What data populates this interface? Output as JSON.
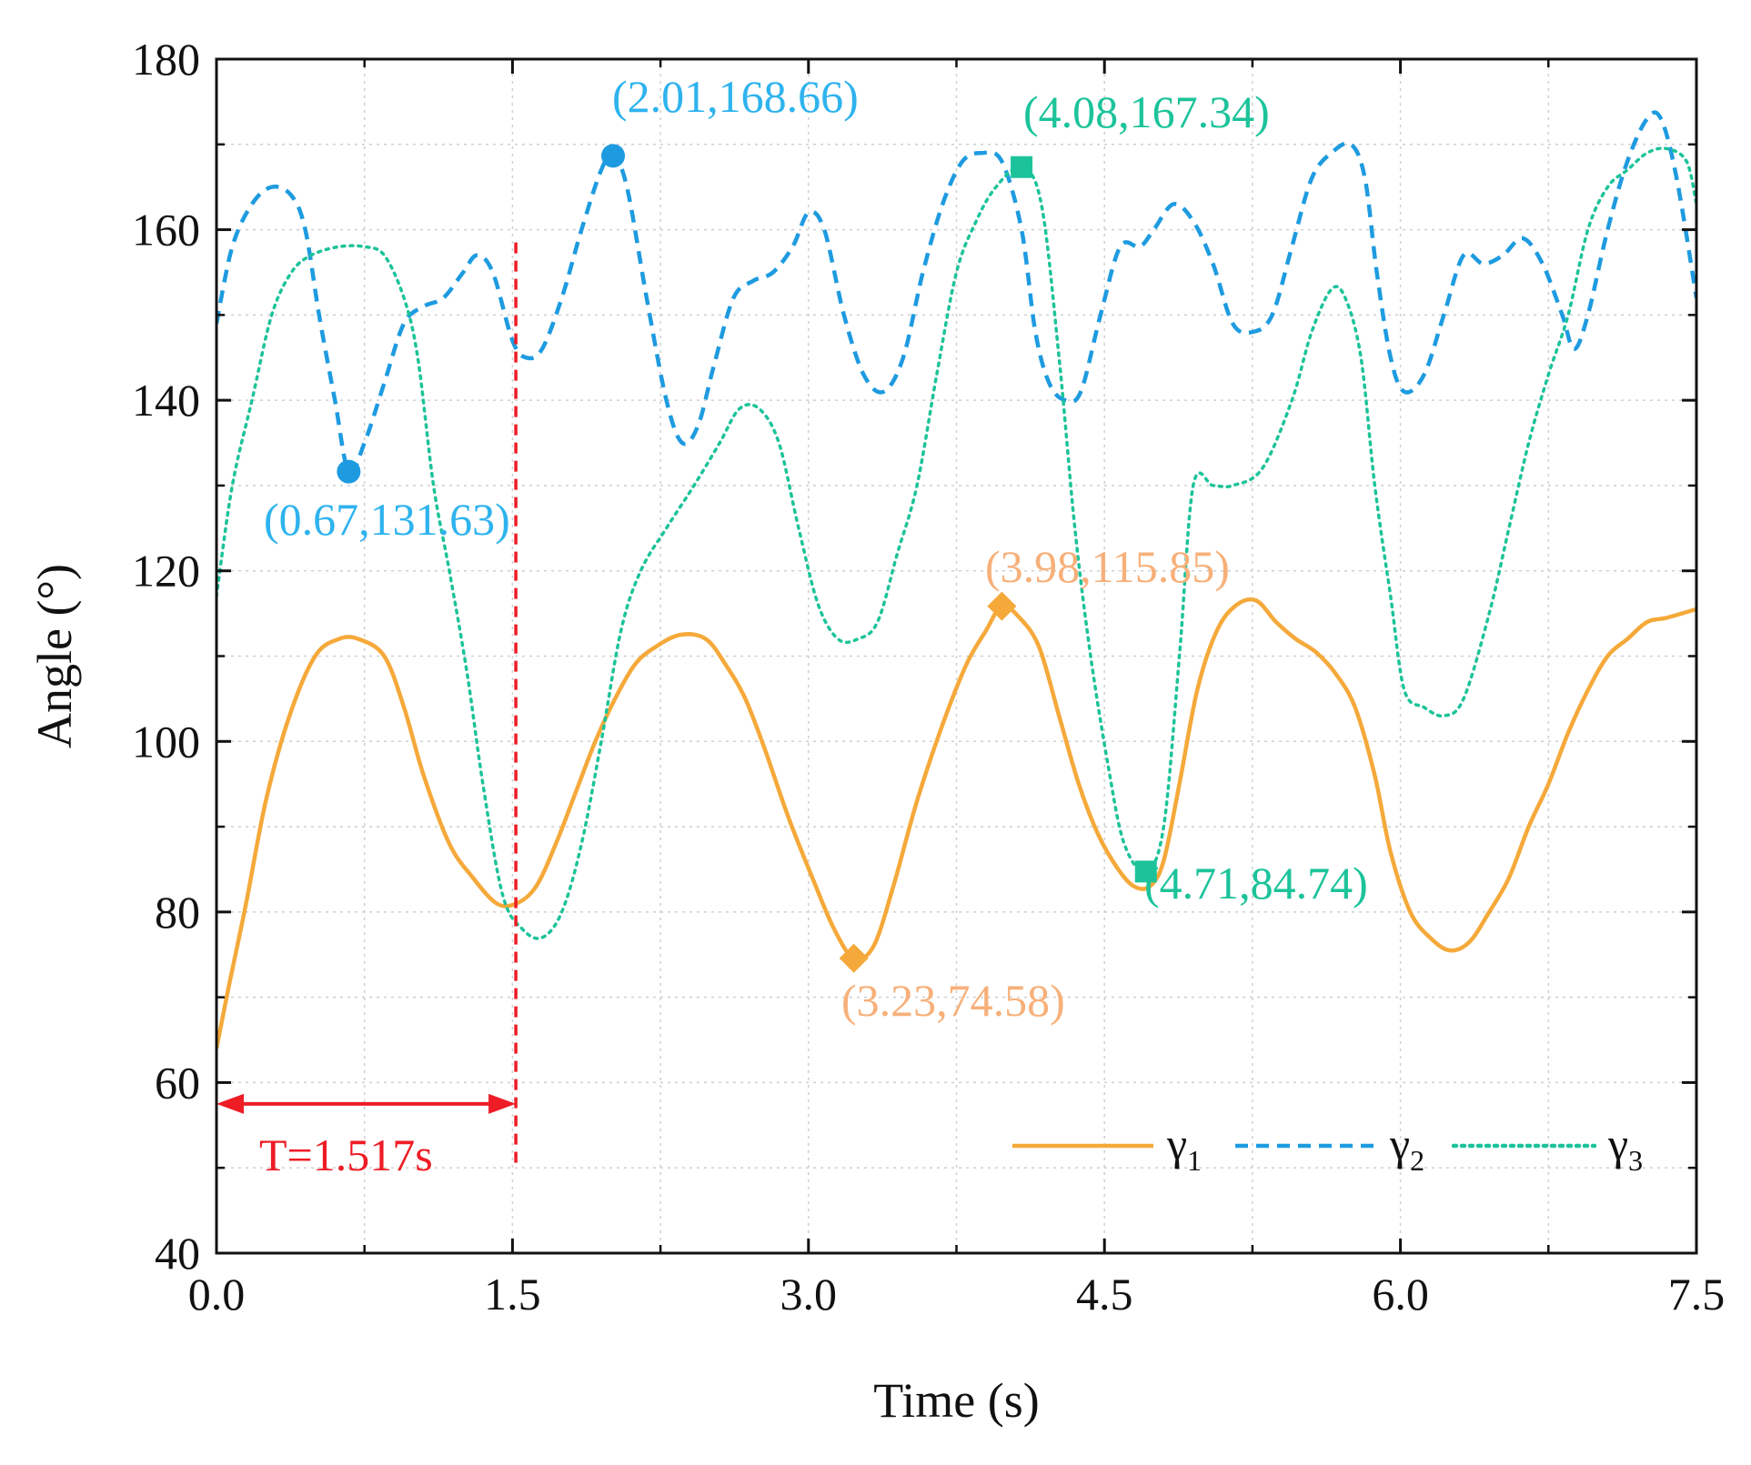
{
  "chart_data": {
    "type": "line",
    "xlabel": "Time (s)",
    "ylabel": "Angle (°)",
    "xlim": [
      0,
      7.5
    ],
    "ylim": [
      40,
      180
    ],
    "xticks": [
      "0.0",
      "1.5",
      "3.0",
      "4.5",
      "6.0",
      "7.5"
    ],
    "yticks": [
      "40",
      "60",
      "80",
      "100",
      "120",
      "140",
      "160",
      "180"
    ],
    "grid": true,
    "legend_position": "bottom-right",
    "series": [
      {
        "name": "γ",
        "sub": "1",
        "color": "#F5A93A",
        "style": "solid",
        "points": [
          [
            0,
            64
          ],
          [
            0.06,
            71
          ],
          [
            0.15,
            81
          ],
          [
            0.25,
            93
          ],
          [
            0.37,
            103
          ],
          [
            0.5,
            110
          ],
          [
            0.62,
            112
          ],
          [
            0.72,
            112
          ],
          [
            0.85,
            110
          ],
          [
            0.95,
            104
          ],
          [
            1.05,
            96
          ],
          [
            1.18,
            88
          ],
          [
            1.3,
            84
          ],
          [
            1.42,
            81
          ],
          [
            1.52,
            81
          ],
          [
            1.62,
            83
          ],
          [
            1.72,
            88
          ],
          [
            1.82,
            94
          ],
          [
            1.92,
            100
          ],
          [
            2.02,
            105
          ],
          [
            2.12,
            109
          ],
          [
            2.22,
            111
          ],
          [
            2.35,
            112.5
          ],
          [
            2.48,
            112
          ],
          [
            2.58,
            109
          ],
          [
            2.68,
            105
          ],
          [
            2.78,
            99
          ],
          [
            2.9,
            91
          ],
          [
            3.02,
            84
          ],
          [
            3.13,
            78
          ],
          [
            3.23,
            74.58
          ],
          [
            3.33,
            76
          ],
          [
            3.43,
            83
          ],
          [
            3.55,
            93
          ],
          [
            3.68,
            102
          ],
          [
            3.8,
            109
          ],
          [
            3.9,
            113
          ],
          [
            3.98,
            115.85
          ],
          [
            4.07,
            114.5
          ],
          [
            4.17,
            111
          ],
          [
            4.27,
            103
          ],
          [
            4.37,
            95
          ],
          [
            4.47,
            89
          ],
          [
            4.57,
            85
          ],
          [
            4.65,
            83
          ],
          [
            4.73,
            83
          ],
          [
            4.8,
            86
          ],
          [
            4.88,
            95
          ],
          [
            4.97,
            106
          ],
          [
            5.07,
            113
          ],
          [
            5.17,
            116
          ],
          [
            5.27,
            116.5
          ],
          [
            5.37,
            114
          ],
          [
            5.47,
            112
          ],
          [
            5.57,
            110.5
          ],
          [
            5.67,
            108
          ],
          [
            5.77,
            104
          ],
          [
            5.87,
            96
          ],
          [
            5.95,
            87
          ],
          [
            6.05,
            80
          ],
          [
            6.15,
            77
          ],
          [
            6.25,
            75.5
          ],
          [
            6.35,
            76.5
          ],
          [
            6.45,
            80
          ],
          [
            6.55,
            84
          ],
          [
            6.65,
            90
          ],
          [
            6.75,
            95
          ],
          [
            6.85,
            101
          ],
          [
            6.95,
            106
          ],
          [
            7.05,
            110
          ],
          [
            7.15,
            112
          ],
          [
            7.25,
            114
          ],
          [
            7.35,
            114.5
          ],
          [
            7.5,
            115.5
          ]
        ]
      },
      {
        "name": "γ",
        "sub": "2",
        "color": "#1E9BE0",
        "style": "dashed",
        "points": [
          [
            0,
            149
          ],
          [
            0.08,
            158
          ],
          [
            0.18,
            163
          ],
          [
            0.28,
            165
          ],
          [
            0.38,
            164
          ],
          [
            0.45,
            160
          ],
          [
            0.52,
            150
          ],
          [
            0.6,
            140
          ],
          [
            0.67,
            131.63
          ],
          [
            0.75,
            135
          ],
          [
            0.85,
            142
          ],
          [
            0.95,
            149
          ],
          [
            1.05,
            151
          ],
          [
            1.15,
            152
          ],
          [
            1.25,
            155
          ],
          [
            1.32,
            157
          ],
          [
            1.4,
            155
          ],
          [
            1.5,
            147
          ],
          [
            1.57,
            145
          ],
          [
            1.65,
            146
          ],
          [
            1.75,
            152
          ],
          [
            1.85,
            160
          ],
          [
            1.95,
            167
          ],
          [
            2.01,
            168.66
          ],
          [
            2.08,
            165
          ],
          [
            2.18,
            152
          ],
          [
            2.28,
            140
          ],
          [
            2.36,
            135
          ],
          [
            2.44,
            137
          ],
          [
            2.52,
            144
          ],
          [
            2.62,
            152
          ],
          [
            2.72,
            154
          ],
          [
            2.82,
            155
          ],
          [
            2.92,
            158
          ],
          [
            3.0,
            162
          ],
          [
            3.08,
            160
          ],
          [
            3.18,
            150
          ],
          [
            3.28,
            143
          ],
          [
            3.38,
            141
          ],
          [
            3.48,
            145
          ],
          [
            3.58,
            155
          ],
          [
            3.68,
            163
          ],
          [
            3.78,
            168
          ],
          [
            3.88,
            169
          ],
          [
            3.98,
            168
          ],
          [
            4.08,
            160
          ],
          [
            4.15,
            148
          ],
          [
            4.22,
            142
          ],
          [
            4.3,
            140
          ],
          [
            4.38,
            141
          ],
          [
            4.48,
            150
          ],
          [
            4.58,
            158
          ],
          [
            4.68,
            158
          ],
          [
            4.75,
            160
          ],
          [
            4.85,
            163
          ],
          [
            4.95,
            161
          ],
          [
            5.05,
            156
          ],
          [
            5.15,
            149
          ],
          [
            5.25,
            148
          ],
          [
            5.35,
            150
          ],
          [
            5.45,
            158
          ],
          [
            5.55,
            166
          ],
          [
            5.65,
            169
          ],
          [
            5.75,
            170
          ],
          [
            5.82,
            166
          ],
          [
            5.88,
            155
          ],
          [
            5.95,
            145
          ],
          [
            6.02,
            141
          ],
          [
            6.12,
            143
          ],
          [
            6.22,
            150
          ],
          [
            6.32,
            157
          ],
          [
            6.42,
            156
          ],
          [
            6.52,
            157
          ],
          [
            6.62,
            159
          ],
          [
            6.72,
            156
          ],
          [
            6.82,
            150
          ],
          [
            6.88,
            146
          ],
          [
            6.95,
            150
          ],
          [
            7.05,
            160
          ],
          [
            7.15,
            168
          ],
          [
            7.25,
            173
          ],
          [
            7.32,
            173
          ],
          [
            7.4,
            166
          ],
          [
            7.5,
            152
          ]
        ]
      },
      {
        "name": "γ",
        "sub": "3",
        "color": "#1CC39A",
        "style": "dotted",
        "points": [
          [
            0,
            117
          ],
          [
            0.08,
            130
          ],
          [
            0.18,
            140
          ],
          [
            0.28,
            150
          ],
          [
            0.38,
            155
          ],
          [
            0.48,
            157
          ],
          [
            0.62,
            158
          ],
          [
            0.75,
            158
          ],
          [
            0.85,
            157
          ],
          [
            0.95,
            152
          ],
          [
            1.02,
            145
          ],
          [
            1.1,
            130
          ],
          [
            1.18,
            120
          ],
          [
            1.27,
            108
          ],
          [
            1.35,
            95
          ],
          [
            1.45,
            82
          ],
          [
            1.55,
            78
          ],
          [
            1.65,
            77
          ],
          [
            1.75,
            80
          ],
          [
            1.85,
            88
          ],
          [
            1.95,
            100
          ],
          [
            2.05,
            113
          ],
          [
            2.15,
            120
          ],
          [
            2.28,
            125
          ],
          [
            2.42,
            130
          ],
          [
            2.55,
            135
          ],
          [
            2.65,
            139
          ],
          [
            2.75,
            139
          ],
          [
            2.85,
            135
          ],
          [
            2.95,
            125
          ],
          [
            3.05,
            116
          ],
          [
            3.15,
            112
          ],
          [
            3.25,
            112
          ],
          [
            3.35,
            114
          ],
          [
            3.45,
            122
          ],
          [
            3.55,
            130
          ],
          [
            3.65,
            143
          ],
          [
            3.75,
            155
          ],
          [
            3.85,
            161
          ],
          [
            3.95,
            165
          ],
          [
            4.08,
            167.34
          ],
          [
            4.18,
            163
          ],
          [
            4.27,
            145
          ],
          [
            4.35,
            125
          ],
          [
            4.43,
            110
          ],
          [
            4.52,
            97
          ],
          [
            4.6,
            88
          ],
          [
            4.71,
            84.74
          ],
          [
            4.8,
            90
          ],
          [
            4.88,
            110
          ],
          [
            4.95,
            130
          ],
          [
            5.05,
            130
          ],
          [
            5.15,
            130
          ],
          [
            5.3,
            132
          ],
          [
            5.45,
            140
          ],
          [
            5.55,
            148
          ],
          [
            5.65,
            153
          ],
          [
            5.72,
            152
          ],
          [
            5.8,
            145
          ],
          [
            5.87,
            130
          ],
          [
            5.95,
            117
          ],
          [
            6.02,
            106
          ],
          [
            6.12,
            104
          ],
          [
            6.22,
            103
          ],
          [
            6.32,
            105
          ],
          [
            6.45,
            115
          ],
          [
            6.55,
            125
          ],
          [
            6.65,
            135
          ],
          [
            6.75,
            143
          ],
          [
            6.85,
            150
          ],
          [
            6.95,
            160
          ],
          [
            7.05,
            165
          ],
          [
            7.15,
            167
          ],
          [
            7.25,
            169
          ],
          [
            7.35,
            169.5
          ],
          [
            7.45,
            168
          ],
          [
            7.5,
            163
          ]
        ]
      }
    ],
    "markers": [
      {
        "series": 0,
        "shape": "diamond",
        "x": 3.23,
        "y": 74.58,
        "label": "(3.23,74.58)",
        "label_color": "#F7B07A"
      },
      {
        "series": 0,
        "shape": "diamond",
        "x": 3.98,
        "y": 115.85,
        "label": "(3.98,115.85)",
        "label_color": "#F7B07A"
      },
      {
        "series": 1,
        "shape": "circle",
        "x": 0.67,
        "y": 131.63,
        "label": "(0.67,131.63)",
        "label_color": "#2EB3EE"
      },
      {
        "series": 1,
        "shape": "circle",
        "x": 2.01,
        "y": 168.66,
        "label": "(2.01,168.66)",
        "label_color": "#2EB3EE"
      },
      {
        "series": 2,
        "shape": "square",
        "x": 4.08,
        "y": 167.34,
        "label": "(4.08,167.34)",
        "label_color": "#1CC39A"
      },
      {
        "series": 2,
        "shape": "square",
        "x": 4.71,
        "y": 84.74,
        "label": "(4.71,84.74)",
        "label_color": "#1CC39A"
      }
    ],
    "period": {
      "x_start": 0,
      "x_end": 1.517,
      "y_arrow": 57.5,
      "label": "T=1.517s",
      "color": "#EE1C25"
    }
  }
}
